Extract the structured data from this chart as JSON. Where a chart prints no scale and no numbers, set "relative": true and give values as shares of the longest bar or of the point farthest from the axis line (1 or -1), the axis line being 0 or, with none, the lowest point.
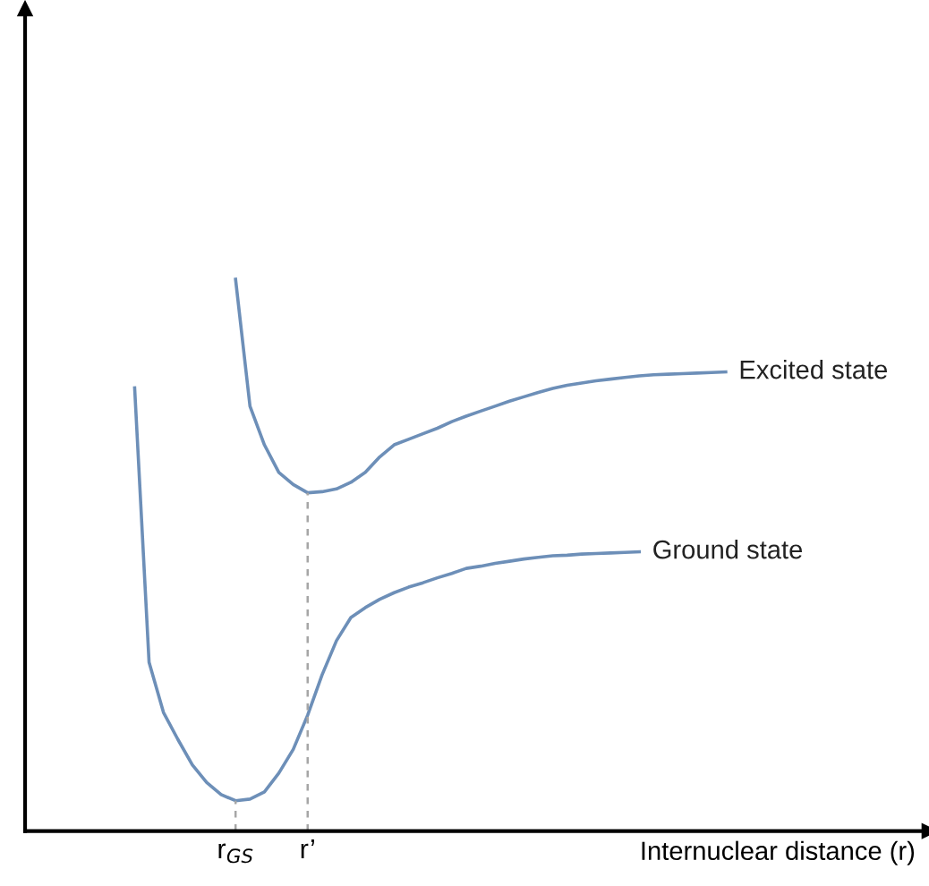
{
  "chart_data": {
    "type": "line",
    "relative": true,
    "xlabel": "Internuclear distance (r)",
    "categories": [
      null,
      null,
      null,
      null,
      null,
      null,
      null,
      null,
      null,
      null,
      null,
      null,
      null,
      null,
      "r$_{GS}$",
      null,
      null,
      null,
      null,
      "r’",
      null,
      null,
      null,
      null,
      null,
      null,
      null,
      null,
      null,
      null,
      null,
      null,
      null,
      null,
      null,
      null,
      null,
      null,
      null,
      null,
      null,
      null,
      null,
      null,
      null,
      null,
      null,
      null,
      null,
      null,
      null,
      null,
      null,
      null,
      null,
      null,
      null,
      null,
      null,
      null,
      null,
      null,
      null
    ],
    "marker": "none",
    "line_style": "solid",
    "series": [
      {
        "name": "Excited state",
        "color": "#6d8fb8",
        "values": [
          null,
          null,
          null,
          null,
          null,
          null,
          null,
          null,
          null,
          null,
          null,
          null,
          null,
          null,
          1.0,
          0.77,
          0.7,
          0.65,
          0.628,
          0.613,
          0.615,
          0.62,
          0.632,
          0.65,
          0.678,
          0.7,
          0.71,
          0.72,
          0.73,
          0.742,
          0.752,
          0.761,
          0.77,
          0.779,
          0.787,
          0.795,
          0.802,
          0.808,
          0.812,
          0.816,
          0.819,
          0.822,
          0.825,
          0.827,
          0.828,
          0.829,
          0.83,
          0.831,
          0.832,
          null,
          null,
          null,
          null,
          null,
          null,
          null,
          null,
          null,
          null,
          null,
          null,
          null,
          null
        ]
      },
      {
        "name": "Ground state",
        "color": "#6d8fb8",
        "values": [
          null,
          null,
          null,
          null,
          null,
          null,
          null,
          0.803,
          0.306,
          0.215,
          0.166,
          0.12,
          0.088,
          0.066,
          0.055,
          0.058,
          0.071,
          0.105,
          0.148,
          0.21,
          0.283,
          0.345,
          0.387,
          0.405,
          0.42,
          0.432,
          0.442,
          0.45,
          0.459,
          0.467,
          0.476,
          0.48,
          0.485,
          0.489,
          0.493,
          0.496,
          0.499,
          0.5,
          0.502,
          0.503,
          0.504,
          0.505,
          0.506,
          null,
          null,
          null,
          null,
          null,
          null,
          null,
          null,
          null,
          null,
          null,
          null,
          null,
          null,
          null,
          null,
          null,
          null,
          null,
          null
        ]
      }
    ]
  }
}
